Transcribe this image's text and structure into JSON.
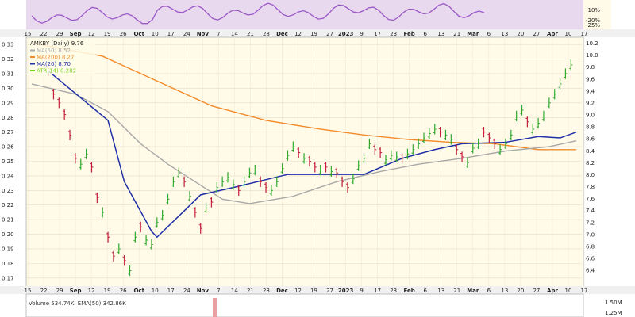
{
  "chart_data": {
    "type": "line",
    "style": "ohlc-bar",
    "symbol_label": "AMKBY (Daily) 9.76",
    "legend": [
      {
        "label": "MA(50) 8.52",
        "color": "#aaaaaa"
      },
      {
        "label": "MA(200) 8.27",
        "color": "#f28b2b"
      },
      {
        "label": "MA(20) 8.70",
        "color": "#1f2fa8"
      },
      {
        "label": "ATR(14) 0.282",
        "color": "#7ed321"
      }
    ],
    "x_ticks": [
      "15",
      "22",
      "29",
      "Sep",
      "12",
      "19",
      "26",
      "Oct",
      "10",
      "17",
      "24",
      "Nov",
      "7",
      "14",
      "21",
      "28",
      "Dec",
      "12",
      "19",
      "27",
      "2023",
      "9",
      "17",
      "23",
      "Feb",
      "6",
      "13",
      "21",
      "Mar",
      "6",
      "13",
      "20",
      "27",
      "Apr",
      "10",
      "17"
    ],
    "y_left": {
      "ylim": [
        0.165,
        0.335
      ],
      "ticks": [
        0.33,
        0.32,
        0.31,
        0.3,
        0.29,
        0.28,
        0.27,
        0.26,
        0.25,
        0.24,
        0.23,
        0.22,
        0.21,
        0.2,
        0.19,
        0.18,
        0.17
      ]
    },
    "y_right": {
      "ylim": [
        6.15,
        10.3
      ],
      "ticks": [
        10.2,
        10.0,
        9.8,
        9.6,
        9.4,
        9.2,
        9.0,
        8.8,
        8.6,
        8.4,
        8.2,
        8.0,
        7.8,
        7.6,
        7.4,
        7.2,
        7.0,
        6.8,
        6.6,
        6.4
      ]
    },
    "price_bars": [
      [
        0.312,
        "d"
      ],
      [
        0.296,
        "d"
      ],
      [
        0.29,
        "d"
      ],
      [
        0.282,
        "d"
      ],
      [
        0.268,
        "d"
      ],
      [
        0.252,
        "d"
      ],
      [
        0.248,
        "u"
      ],
      [
        0.255,
        "u"
      ],
      [
        0.246,
        "d"
      ],
      [
        0.225,
        "d"
      ],
      [
        0.215,
        "u"
      ],
      [
        0.198,
        "d"
      ],
      [
        0.185,
        "d"
      ],
      [
        0.19,
        "u"
      ],
      [
        0.182,
        "d"
      ],
      [
        0.175,
        "u"
      ],
      [
        0.198,
        "u"
      ],
      [
        0.205,
        "d"
      ],
      [
        0.196,
        "u"
      ],
      [
        0.193,
        "u"
      ],
      [
        0.208,
        "u"
      ],
      [
        0.213,
        "u"
      ],
      [
        0.224,
        "u"
      ],
      [
        0.236,
        "u"
      ],
      [
        0.242,
        "u"
      ],
      [
        0.236,
        "d"
      ],
      [
        0.226,
        "u"
      ],
      [
        0.215,
        "d"
      ],
      [
        0.204,
        "d"
      ],
      [
        0.218,
        "u"
      ],
      [
        0.222,
        "d"
      ],
      [
        0.232,
        "u"
      ],
      [
        0.236,
        "u"
      ],
      [
        0.239,
        "u"
      ],
      [
        0.234,
        "u"
      ],
      [
        0.23,
        "d"
      ],
      [
        0.236,
        "u"
      ],
      [
        0.242,
        "u"
      ],
      [
        0.244,
        "u"
      ],
      [
        0.236,
        "d"
      ],
      [
        0.232,
        "d"
      ],
      [
        0.23,
        "u"
      ],
      [
        0.236,
        "u"
      ],
      [
        0.245,
        "u"
      ],
      [
        0.254,
        "u"
      ],
      [
        0.26,
        "u"
      ],
      [
        0.256,
        "d"
      ],
      [
        0.252,
        "u"
      ],
      [
        0.25,
        "d"
      ],
      [
        0.246,
        "d"
      ],
      [
        0.244,
        "u"
      ],
      [
        0.246,
        "d"
      ],
      [
        0.243,
        "u"
      ],
      [
        0.242,
        "d"
      ],
      [
        0.236,
        "d"
      ],
      [
        0.232,
        "d"
      ],
      [
        0.238,
        "u"
      ],
      [
        0.247,
        "u"
      ],
      [
        0.252,
        "u"
      ],
      [
        0.262,
        "u"
      ],
      [
        0.258,
        "d"
      ],
      [
        0.256,
        "d"
      ],
      [
        0.251,
        "u"
      ],
      [
        0.254,
        "u"
      ],
      [
        0.253,
        "u"
      ],
      [
        0.252,
        "d"
      ],
      [
        0.255,
        "u"
      ],
      [
        0.258,
        "u"
      ],
      [
        0.262,
        "u"
      ],
      [
        0.266,
        "u"
      ],
      [
        0.269,
        "u"
      ],
      [
        0.272,
        "u"
      ],
      [
        0.27,
        "d"
      ],
      [
        0.268,
        "u"
      ],
      [
        0.265,
        "u"
      ],
      [
        0.258,
        "d"
      ],
      [
        0.253,
        "d"
      ],
      [
        0.249,
        "u"
      ],
      [
        0.259,
        "u"
      ],
      [
        0.262,
        "u"
      ],
      [
        0.27,
        "d"
      ],
      [
        0.266,
        "d"
      ],
      [
        0.262,
        "d"
      ],
      [
        0.258,
        "u"
      ],
      [
        0.262,
        "u"
      ],
      [
        0.268,
        "u"
      ],
      [
        0.281,
        "u"
      ],
      [
        0.285,
        "u"
      ],
      [
        0.277,
        "d"
      ],
      [
        0.272,
        "u"
      ],
      [
        0.276,
        "u"
      ],
      [
        0.281,
        "u"
      ],
      [
        0.29,
        "u"
      ],
      [
        0.296,
        "u"
      ],
      [
        0.303,
        "u"
      ],
      [
        0.31,
        "u"
      ],
      [
        0.316,
        "u"
      ]
    ],
    "ma20": [
      [
        0.312,
        0
      ],
      [
        0.278,
        11
      ],
      [
        0.236,
        14
      ],
      [
        0.202,
        19
      ],
      [
        0.198,
        20
      ],
      [
        0.216,
        25
      ],
      [
        0.227,
        28
      ],
      [
        0.232,
        34
      ],
      [
        0.241,
        44
      ],
      [
        0.241,
        58
      ],
      [
        0.252,
        65
      ],
      [
        0.258,
        71
      ],
      [
        0.262,
        76
      ],
      [
        0.263,
        84
      ],
      [
        0.267,
        90
      ],
      [
        0.266,
        94
      ],
      [
        0.27,
        97
      ]
    ],
    "ma50": [
      [
        0.303,
        -3
      ],
      [
        0.296,
        5
      ],
      [
        0.284,
        11
      ],
      [
        0.262,
        17
      ],
      [
        0.248,
        22
      ],
      [
        0.236,
        27
      ],
      [
        0.224,
        32
      ],
      [
        0.221,
        37
      ],
      [
        0.226,
        45
      ],
      [
        0.236,
        53
      ],
      [
        0.243,
        61
      ],
      [
        0.248,
        68
      ],
      [
        0.252,
        76
      ],
      [
        0.257,
        84
      ],
      [
        0.26,
        92
      ],
      [
        0.264,
        97
      ]
    ],
    "ma200": [
      [
        0.331,
        -3
      ],
      [
        0.322,
        10
      ],
      [
        0.305,
        20
      ],
      [
        0.288,
        30
      ],
      [
        0.278,
        40
      ],
      [
        0.272,
        50
      ],
      [
        0.268,
        58
      ],
      [
        0.265,
        66
      ],
      [
        0.263,
        74
      ],
      [
        0.262,
        82
      ],
      [
        0.258,
        90
      ],
      [
        0.258,
        97
      ]
    ],
    "top_panel": {
      "ticks": [
        "-10%",
        "-20%",
        "-25%"
      ],
      "color": "#9b59c6"
    },
    "volume_panel": {
      "label": "Volume 534.74K, EMA(50) 342.86K",
      "ticks": [
        "1.50M",
        "1.25M"
      ]
    }
  }
}
